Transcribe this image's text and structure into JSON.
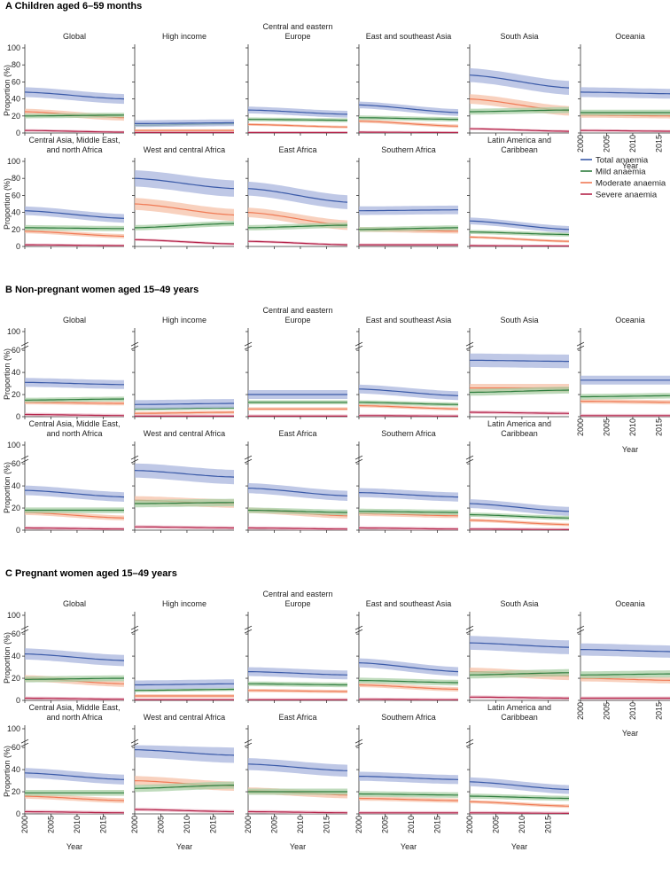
{
  "colors": {
    "total": "#3a5aa8",
    "mild": "#2f7d3e",
    "moderate": "#f07a55",
    "severe": "#b4244a",
    "total_band": "#aab6de",
    "mild_band": "#a9cfa6",
    "moderate_band": "#f5c2a8",
    "severe_band": "#e9b3c3"
  },
  "chart_data": {
    "type": "line",
    "xlabel": "Year",
    "ylabel": "Proportion (%)",
    "x_ticks": [
      "2000",
      "2005",
      "2010",
      "2015"
    ],
    "xlim": [
      2000,
      2019
    ],
    "legend": {
      "position": "right",
      "items": [
        {
          "key": "total",
          "label": "Total anaemia"
        },
        {
          "key": "mild",
          "label": "Mild anaemia"
        },
        {
          "key": "moderate",
          "label": "Moderate anaemia"
        },
        {
          "key": "severe",
          "label": "Severe anaemia"
        }
      ]
    },
    "sections": [
      {
        "letter": "A",
        "title": "Children aged 6–59 months",
        "y_ticks": [
          "0",
          "20",
          "40",
          "60",
          "80",
          "100"
        ],
        "y_max": 100,
        "panels": [
          {
            "title": "Global",
            "series": {
              "total": [
                48,
                40
              ],
              "mild": [
                20,
                21
              ],
              "moderate": [
                25,
                18
              ],
              "severe": [
                3,
                1
              ]
            }
          },
          {
            "title": "High income",
            "series": {
              "total": [
                11,
                12
              ],
              "mild": [
                9,
                11
              ],
              "moderate": [
                3,
                3
              ],
              "severe": [
                0.5,
                0.5
              ]
            }
          },
          {
            "title": "Central and eastern Europe",
            "series": {
              "total": [
                27,
                22
              ],
              "mild": [
                16,
                15
              ],
              "moderate": [
                10,
                7
              ],
              "severe": [
                0.5,
                0.5
              ]
            }
          },
          {
            "title": "East and southeast Asia",
            "series": {
              "total": [
                33,
                24
              ],
              "mild": [
                18,
                16
              ],
              "moderate": [
                14,
                8
              ],
              "severe": [
                1,
                0.5
              ]
            }
          },
          {
            "title": "South Asia",
            "series": {
              "total": [
                68,
                53
              ],
              "mild": [
                25,
                27
              ],
              "moderate": [
                40,
                26
              ],
              "severe": [
                5,
                2
              ]
            }
          },
          {
            "title": "Oceania",
            "series": {
              "total": [
                48,
                46
              ],
              "mild": [
                24,
                24
              ],
              "moderate": [
                21,
                20
              ],
              "severe": [
                3,
                2
              ]
            }
          },
          {
            "title": "Central Asia, Middle East, and north Africa",
            "series": {
              "total": [
                42,
                33
              ],
              "mild": [
                22,
                21
              ],
              "moderate": [
                18,
                12
              ],
              "severe": [
                2,
                1
              ]
            }
          },
          {
            "title": "West and central Africa",
            "series": {
              "total": [
                80,
                68
              ],
              "mild": [
                22,
                27
              ],
              "moderate": [
                50,
                37
              ],
              "severe": [
                8,
                3
              ]
            }
          },
          {
            "title": "East Africa",
            "series": {
              "total": [
                68,
                52
              ],
              "mild": [
                22,
                25
              ],
              "moderate": [
                40,
                25
              ],
              "severe": [
                6,
                2
              ]
            }
          },
          {
            "title": "Southern Africa",
            "series": {
              "total": [
                42,
                43
              ],
              "mild": [
                20,
                22
              ],
              "moderate": [
                20,
                18
              ],
              "severe": [
                2,
                2
              ]
            }
          },
          {
            "title": "Latin America and Caribbean",
            "series": {
              "total": [
                30,
                20
              ],
              "mild": [
                17,
                14
              ],
              "moderate": [
                11,
                6
              ],
              "severe": [
                1,
                0.5
              ]
            }
          }
        ]
      },
      {
        "letter": "B",
        "title": "Non-pregnant women aged 15–49 years",
        "y_ticks": [
          "0",
          "20",
          "40",
          "60",
          "100"
        ],
        "y_max": 100,
        "panels": [
          {
            "title": "Global",
            "series": {
              "total": [
                31,
                29
              ],
              "mild": [
                15,
                16
              ],
              "moderate": [
                13,
                12
              ],
              "severe": [
                2,
                1
              ]
            }
          },
          {
            "title": "High income",
            "series": {
              "total": [
                11,
                12
              ],
              "mild": [
                7,
                8
              ],
              "moderate": [
                3,
                4
              ],
              "severe": [
                0.5,
                0.5
              ]
            }
          },
          {
            "title": "Central and eastern Europe",
            "series": {
              "total": [
                20,
                20
              ],
              "mild": [
                13,
                13
              ],
              "moderate": [
                7,
                7
              ],
              "severe": [
                0.5,
                0.5
              ]
            }
          },
          {
            "title": "East and southeast Asia",
            "series": {
              "total": [
                25,
                19
              ],
              "mild": [
                13,
                11
              ],
              "moderate": [
                10,
                7
              ],
              "severe": [
                1,
                0.5
              ]
            }
          },
          {
            "title": "South Asia",
            "series": {
              "total": [
                51,
                50
              ],
              "mild": [
                22,
                24
              ],
              "moderate": [
                26,
                26
              ],
              "severe": [
                4,
                3
              ]
            }
          },
          {
            "title": "Oceania",
            "series": {
              "total": [
                33,
                33
              ],
              "mild": [
                18,
                19
              ],
              "moderate": [
                14,
                13
              ],
              "severe": [
                1,
                1
              ]
            }
          },
          {
            "title": "Central Asia, Middle East, and north Africa",
            "series": {
              "total": [
                36,
                30
              ],
              "mild": [
                18,
                18
              ],
              "moderate": [
                16,
                11
              ],
              "severe": [
                2,
                1
              ]
            }
          },
          {
            "title": "West and central Africa",
            "series": {
              "total": [
                54,
                48
              ],
              "mild": [
                24,
                25
              ],
              "moderate": [
                27,
                24
              ],
              "severe": [
                3,
                2
              ]
            }
          },
          {
            "title": "East Africa",
            "series": {
              "total": [
                38,
                31
              ],
              "mild": [
                18,
                16
              ],
              "moderate": [
                18,
                13
              ],
              "severe": [
                2,
                1
              ]
            }
          },
          {
            "title": "Southern Africa",
            "series": {
              "total": [
                34,
                30
              ],
              "mild": [
                17,
                16
              ],
              "moderate": [
                15,
                13
              ],
              "severe": [
                2,
                1
              ]
            }
          },
          {
            "title": "Latin America and Caribbean",
            "series": {
              "total": [
                24,
                17
              ],
              "mild": [
                14,
                11
              ],
              "moderate": [
                9,
                5
              ],
              "severe": [
                1,
                0.5
              ]
            }
          }
        ]
      },
      {
        "letter": "C",
        "title": "Pregnant women aged 15–49 years",
        "y_ticks": [
          "0",
          "20",
          "40",
          "60",
          "100"
        ],
        "y_max": 100,
        "panels": [
          {
            "title": "Global",
            "series": {
              "total": [
                42,
                36
              ],
              "mild": [
                19,
                20
              ],
              "moderate": [
                20,
                15
              ],
              "severe": [
                2,
                1
              ]
            }
          },
          {
            "title": "High income",
            "series": {
              "total": [
                14,
                15
              ],
              "mild": [
                9,
                10
              ],
              "moderate": [
                4,
                4
              ],
              "severe": [
                0.5,
                0.5
              ]
            }
          },
          {
            "title": "Central and eastern Europe",
            "series": {
              "total": [
                26,
                23
              ],
              "mild": [
                15,
                14
              ],
              "moderate": [
                9,
                8
              ],
              "severe": [
                0.5,
                0.5
              ]
            }
          },
          {
            "title": "East and southeast Asia",
            "series": {
              "total": [
                34,
                26
              ],
              "mild": [
                18,
                16
              ],
              "moderate": [
                14,
                10
              ],
              "severe": [
                1,
                0.5
              ]
            }
          },
          {
            "title": "South Asia",
            "series": {
              "total": [
                52,
                48
              ],
              "mild": [
                23,
                25
              ],
              "moderate": [
                26,
                22
              ],
              "severe": [
                3,
                2
              ]
            }
          },
          {
            "title": "Oceania",
            "series": {
              "total": [
                46,
                44
              ],
              "mild": [
                23,
                24
              ],
              "moderate": [
                20,
                18
              ],
              "severe": [
                2,
                2
              ]
            }
          },
          {
            "title": "Central Asia, Middle East, and north Africa",
            "series": {
              "total": [
                37,
                31
              ],
              "mild": [
                19,
                19
              ],
              "moderate": [
                16,
                12
              ],
              "severe": [
                2,
                1
              ]
            }
          },
          {
            "title": "West and central Africa",
            "series": {
              "total": [
                58,
                53
              ],
              "mild": [
                23,
                26
              ],
              "moderate": [
                30,
                25
              ],
              "severe": [
                4,
                2
              ]
            }
          },
          {
            "title": "East Africa",
            "series": {
              "total": [
                45,
                39
              ],
              "mild": [
                20,
                20
              ],
              "moderate": [
                21,
                17
              ],
              "severe": [
                2,
                1
              ]
            }
          },
          {
            "title": "Southern Africa",
            "series": {
              "total": [
                34,
                31
              ],
              "mild": [
                18,
                17
              ],
              "moderate": [
                14,
                12
              ],
              "severe": [
                1,
                1
              ]
            }
          },
          {
            "title": "Latin America and Caribbean",
            "series": {
              "total": [
                29,
                22
              ],
              "mild": [
                16,
                14
              ],
              "moderate": [
                11,
                7
              ],
              "severe": [
                1,
                0.5
              ]
            }
          }
        ]
      }
    ]
  }
}
